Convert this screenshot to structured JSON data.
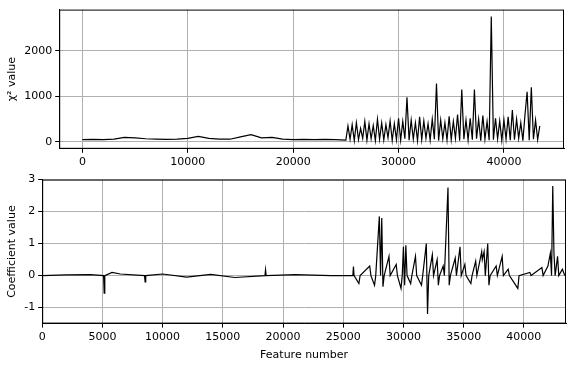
{
  "chart_data": [
    {
      "type": "line",
      "y_label": "χ² value",
      "color": "#000000",
      "grid": true,
      "xlim": [
        -2200,
        45700
      ],
      "xticks": [
        0,
        10000,
        20000,
        30000,
        40000
      ],
      "ylim": [
        -150,
        2900
      ],
      "yticks": [
        0,
        1000,
        2000
      ],
      "x": [
        0,
        1000,
        2000,
        3000,
        4000,
        5000,
        6000,
        7000,
        8000,
        9000,
        10000,
        11000,
        12000,
        13000,
        14000,
        15000,
        16000,
        17000,
        18000,
        19000,
        20000,
        21000,
        22000,
        23000,
        24000,
        25000,
        25200,
        25400,
        25600,
        25800,
        26000,
        26200,
        26400,
        26600,
        26800,
        27000,
        27200,
        27400,
        27600,
        27800,
        28000,
        28200,
        28400,
        28600,
        28800,
        29000,
        29200,
        29400,
        29600,
        29800,
        30000,
        30200,
        30400,
        30600,
        30800,
        31000,
        31200,
        31400,
        31600,
        31800,
        32000,
        32200,
        32400,
        32600,
        32800,
        33000,
        33200,
        33400,
        33600,
        33800,
        34000,
        34200,
        34400,
        34600,
        34800,
        35000,
        35200,
        35400,
        35600,
        35800,
        36000,
        36200,
        36400,
        36600,
        36800,
        37000,
        37200,
        37400,
        37600,
        37800,
        38000,
        38200,
        38400,
        38600,
        38800,
        39000,
        39200,
        39400,
        39600,
        39800,
        40000,
        40200,
        40400,
        40600,
        40800,
        41000,
        41200,
        41400,
        41600,
        41800,
        42000,
        42200,
        42400,
        42600,
        42800,
        43000,
        43200,
        43400
      ],
      "values": [
        50,
        55,
        50,
        60,
        100,
        90,
        70,
        60,
        55,
        60,
        80,
        120,
        80,
        60,
        60,
        110,
        160,
        90,
        100,
        60,
        50,
        55,
        50,
        55,
        50,
        40,
        350,
        60,
        380,
        30,
        420,
        50,
        300,
        80,
        450,
        40,
        400,
        70,
        360,
        30,
        500,
        60,
        420,
        40,
        380,
        90,
        460,
        30,
        400,
        50,
        520,
        40,
        450,
        70,
        980,
        40,
        480,
        60,
        420,
        30,
        550,
        50,
        460,
        80,
        400,
        40,
        500,
        60,
        1280,
        30,
        480,
        70,
        420,
        40,
        560,
        50,
        450,
        80,
        600,
        30,
        1150,
        60,
        480,
        40,
        520,
        50,
        1150,
        70,
        500,
        30,
        580,
        60,
        450,
        40,
        2750,
        50,
        520,
        70,
        460,
        30,
        480,
        60,
        550,
        40,
        700,
        50,
        500,
        80,
        420,
        30,
        600,
        1100,
        40,
        1200,
        60,
        480,
        50,
        350
      ]
    },
    {
      "type": "line",
      "x_label": "Feature number",
      "y_label": "Coefficient value",
      "color": "#000000",
      "grid": true,
      "xlim": [
        0,
        43500
      ],
      "xticks": [
        0,
        5000,
        10000,
        15000,
        20000,
        25000,
        30000,
        35000,
        40000
      ],
      "ylim": [
        -1.5,
        3
      ],
      "yticks": [
        -1,
        0,
        1,
        2,
        3
      ],
      "x": [
        0,
        2000,
        4000,
        5100,
        5150,
        5200,
        5800,
        6500,
        8500,
        8550,
        8600,
        10000,
        12000,
        14000,
        16000,
        18500,
        18550,
        18600,
        21000,
        24000,
        25800,
        25850,
        25900,
        26300,
        26400,
        27200,
        27300,
        27600,
        27700,
        28000,
        28100,
        28200,
        28300,
        28400,
        28800,
        28900,
        29400,
        29500,
        29800,
        29900,
        30000,
        30100,
        30200,
        30300,
        30600,
        30700,
        31000,
        31100,
        31500,
        31600,
        31900,
        32000,
        32100,
        32400,
        32500,
        32800,
        32900,
        33000,
        33300,
        33400,
        33700,
        33800,
        33900,
        34300,
        34400,
        34700,
        34800,
        35100,
        35200,
        35600,
        35700,
        36000,
        36100,
        36500,
        36550,
        36700,
        36800,
        37000,
        37100,
        37200,
        37700,
        37800,
        38200,
        38300,
        38700,
        38800,
        39500,
        39600,
        40500,
        40600,
        41500,
        41600,
        42000,
        42200,
        42300,
        42400,
        42500,
        42600,
        42800,
        42900,
        43200,
        43400
      ],
      "values": [
        0,
        0.02,
        0.03,
        0,
        -0.55,
        0,
        0.1,
        0.05,
        0,
        -0.2,
        0,
        0.05,
        -0.05,
        0.04,
        -0.06,
        0,
        0.18,
        0,
        0.03,
        0,
        0,
        0.28,
        0,
        -0.25,
        0,
        0.3,
        0,
        -0.3,
        0,
        1.85,
        0,
        1.8,
        -0.35,
        0,
        0.6,
        0,
        0.35,
        0,
        -0.4,
        0,
        0.9,
        -0.3,
        0.95,
        0,
        -0.25,
        0,
        0.6,
        0,
        -0.3,
        0,
        1.0,
        -1.2,
        0,
        0.65,
        0,
        0.5,
        -0.3,
        0,
        0.3,
        0,
        2.75,
        -0.3,
        0,
        0.55,
        0,
        0.9,
        0,
        0.35,
        0,
        -0.25,
        0,
        0.45,
        0,
        0.75,
        0.5,
        0.75,
        0,
        1.0,
        -0.3,
        0,
        0.3,
        0,
        0.6,
        0,
        0.2,
        0,
        -0.4,
        0,
        0.1,
        0,
        0.25,
        0,
        0.3,
        0.7,
        0,
        2.8,
        0.7,
        0,
        0.6,
        0,
        0.2,
        0
      ]
    }
  ]
}
